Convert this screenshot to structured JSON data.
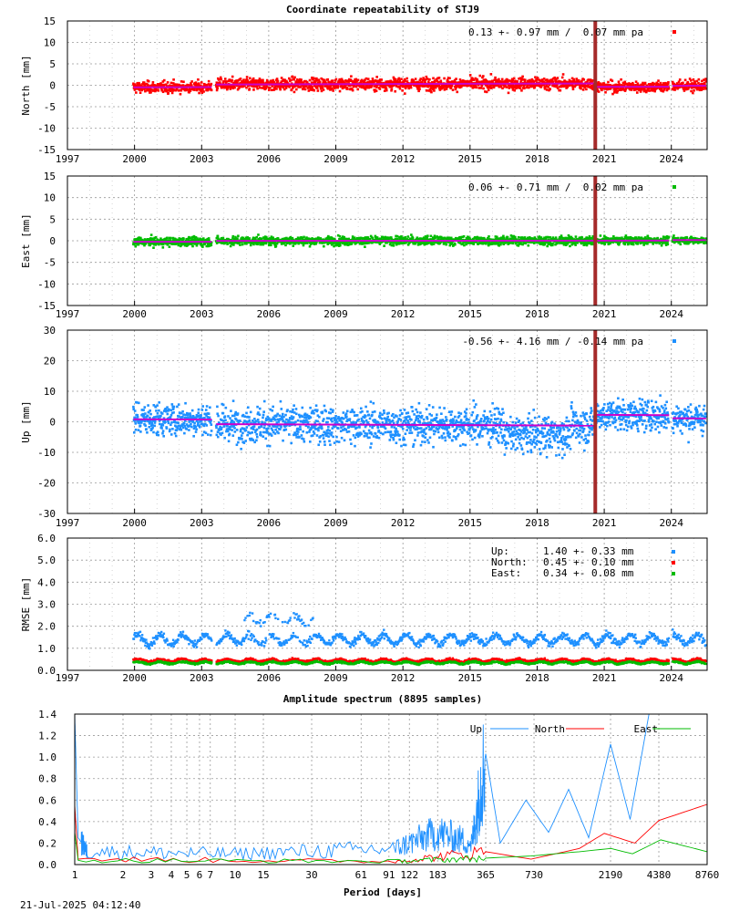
{
  "title": "Coordinate repeatability of STJ9",
  "timestamp": "21-Jul-2025 04:12:40",
  "colors": {
    "north": "#ff0000",
    "east": "#00bb00",
    "up": "#1e90ff",
    "trend": "#cc00cc",
    "event": "#a52a2a"
  },
  "chart_data": [
    {
      "id": "north",
      "type": "scatter",
      "ylabel": "North [mm]",
      "ylim": [
        -15,
        15
      ],
      "xlim": [
        1997,
        2025.6
      ],
      "yticks": [
        -15,
        -10,
        -5,
        0,
        5,
        10,
        15
      ],
      "grid": true,
      "xtick_labels": [
        "1997",
        "2000",
        "2003",
        "2006",
        "2009",
        "2012",
        "2015",
        "2018",
        "2021",
        "2024"
      ],
      "stat_text": "0.13 +- 0.97 mm /  0.07 mm pa",
      "legend_position": "top-right",
      "event_year": 2020.6,
      "segments": [
        {
          "start": 1999.95,
          "end": 2003.45,
          "mean": -0.3,
          "sd": 0.9,
          "trend": 0.07
        },
        {
          "start": 2003.65,
          "end": 2020.55,
          "mean": 0.3,
          "sd": 1.0,
          "trend": 0.07
        },
        {
          "start": 2020.65,
          "end": 2023.9,
          "mean": -0.5,
          "sd": 0.9,
          "trend": 0.07
        },
        {
          "start": 2024.05,
          "end": 2025.55,
          "mean": -0.3,
          "sd": 0.9,
          "trend": 0.07
        }
      ]
    },
    {
      "id": "east",
      "type": "scatter",
      "ylabel": "East [mm]",
      "ylim": [
        -15,
        15
      ],
      "xlim": [
        1997,
        2025.6
      ],
      "yticks": [
        -15,
        -10,
        -5,
        0,
        5,
        10,
        15
      ],
      "grid": true,
      "xtick_labels": [
        "1997",
        "2000",
        "2003",
        "2006",
        "2009",
        "2012",
        "2015",
        "2018",
        "2021",
        "2024"
      ],
      "stat_text": "0.06 +- 0.71 mm /  0.02 mm pa",
      "legend_position": "top-right",
      "event_year": 2020.6,
      "segments": [
        {
          "start": 1999.95,
          "end": 2003.45,
          "mean": -0.2,
          "sd": 0.7,
          "trend": 0.02
        },
        {
          "start": 2003.65,
          "end": 2020.55,
          "mean": 0.0,
          "sd": 0.7,
          "trend": 0.02
        },
        {
          "start": 2020.65,
          "end": 2023.9,
          "mean": 0.0,
          "sd": 0.6,
          "trend": 0.02
        },
        {
          "start": 2024.05,
          "end": 2025.55,
          "mean": 0.1,
          "sd": 0.6,
          "trend": 0.02
        }
      ]
    },
    {
      "id": "up",
      "type": "scatter",
      "ylabel": "Up [mm]",
      "ylim": [
        -30,
        30
      ],
      "xlim": [
        1997,
        2025.6
      ],
      "yticks": [
        -30,
        -20,
        -10,
        0,
        10,
        20,
        30
      ],
      "grid": true,
      "xtick_labels": [
        "1997",
        "2000",
        "2003",
        "2006",
        "2009",
        "2012",
        "2015",
        "2018",
        "2021",
        "2024"
      ],
      "stat_text": "-0.56 +- 4.16 mm / -0.14 mm pa",
      "legend_position": "top-right",
      "event_year": 2020.6,
      "segments": [
        {
          "start": 1999.95,
          "end": 2003.45,
          "mean": 0.5,
          "sd": 3.8,
          "trend": -0.14
        },
        {
          "start": 2003.65,
          "end": 2020.55,
          "mean": -1.0,
          "sd": 4.2,
          "trend": -0.14
        },
        {
          "start": 2020.65,
          "end": 2023.9,
          "mean": 2.5,
          "sd": 3.5,
          "trend": -0.14
        },
        {
          "start": 2024.05,
          "end": 2025.55,
          "mean": 1.5,
          "sd": 3.5,
          "trend": -0.14
        }
      ]
    },
    {
      "id": "rmse",
      "type": "scatter",
      "ylabel": "RMSE [mm]",
      "ylim": [
        0,
        6
      ],
      "xlim": [
        1997,
        2025.6
      ],
      "yticks": [
        "0.0",
        "1.0",
        "2.0",
        "3.0",
        "4.0",
        "5.0",
        "6.0"
      ],
      "grid": true,
      "xtick_labels": [
        "1997",
        "2000",
        "2003",
        "2006",
        "2009",
        "2012",
        "2015",
        "2018",
        "2021",
        "2024"
      ],
      "legend": [
        {
          "name": "Up:",
          "text": "1.40 +- 0.33 mm",
          "color": "#1e90ff"
        },
        {
          "name": "North:",
          "text": "0.45 +- 0.10 mm",
          "color": "#ff0000"
        },
        {
          "name": "East:",
          "text": "0.34 +- 0.08 mm",
          "color": "#00bb00"
        }
      ],
      "series": [
        {
          "name": "Up",
          "mean": 1.4,
          "sd": 0.33
        },
        {
          "name": "North",
          "mean": 0.45,
          "sd": 0.1
        },
        {
          "name": "East",
          "mean": 0.34,
          "sd": 0.08
        }
      ]
    },
    {
      "id": "spectrum",
      "type": "line",
      "title": "Amplitude spectrum (8895 samples)",
      "xlabel": "Period [days]",
      "ylim": [
        0,
        1.4
      ],
      "yticks": [
        "0.0",
        "0.2",
        "0.4",
        "0.6",
        "0.8",
        "1.0",
        "1.2",
        "1.4"
      ],
      "x_scale": "log",
      "xlim": [
        1,
        8760
      ],
      "xticks": [
        1,
        2,
        3,
        4,
        5,
        6,
        7,
        10,
        15,
        30,
        61,
        91,
        122,
        183,
        365,
        730,
        2190,
        4380,
        8760
      ],
      "legend_position": "top",
      "series": [
        {
          "name": "Up",
          "color": "#1e90ff",
          "points": [
            [
              1,
              1.4
            ],
            [
              1.05,
              0.25
            ],
            [
              1.2,
              0.12
            ],
            [
              10,
              0.1
            ],
            [
              100,
              0.15
            ],
            [
              182,
              0.3
            ],
            [
              300,
              0.2
            ],
            [
              365,
              1.03
            ],
            [
              450,
              0.2
            ],
            [
              650,
              0.6
            ],
            [
              900,
              0.3
            ],
            [
              1200,
              0.7
            ],
            [
              1600,
              0.25
            ],
            [
              2190,
              1.12
            ],
            [
              2900,
              0.42
            ],
            [
              3800,
              1.4
            ]
          ]
        },
        {
          "name": "North",
          "color": "#ff0000",
          "points": [
            [
              1,
              0.55
            ],
            [
              1.05,
              0.05
            ],
            [
              100,
              0.03
            ],
            [
              365,
              0.12
            ],
            [
              700,
              0.05
            ],
            [
              1400,
              0.15
            ],
            [
              2000,
              0.29
            ],
            [
              3100,
              0.2
            ],
            [
              4380,
              0.41
            ],
            [
              8760,
              0.56
            ]
          ]
        },
        {
          "name": "East",
          "color": "#00bb00",
          "points": [
            [
              1,
              0.3
            ],
            [
              1.05,
              0.04
            ],
            [
              100,
              0.03
            ],
            [
              365,
              0.06
            ],
            [
              700,
              0.08
            ],
            [
              1400,
              0.12
            ],
            [
              2200,
              0.15
            ],
            [
              3000,
              0.1
            ],
            [
              4500,
              0.23
            ],
            [
              8760,
              0.12
            ]
          ]
        }
      ]
    }
  ]
}
